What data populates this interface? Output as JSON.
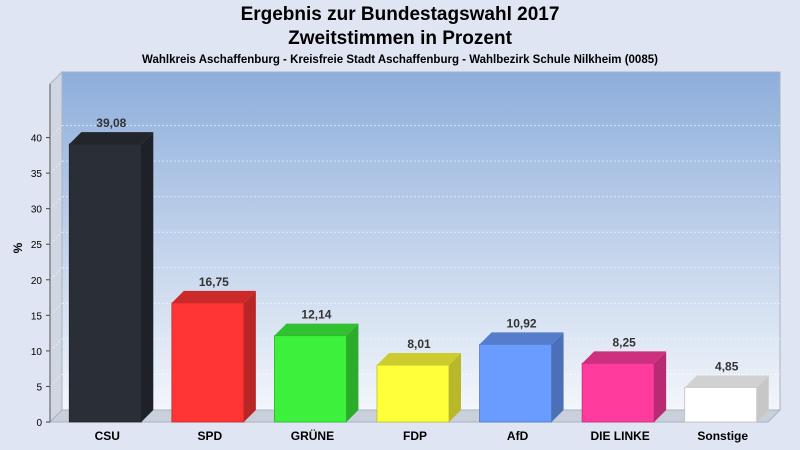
{
  "chart_data": {
    "type": "bar",
    "title": "Ergebnis zur Bundestagswahl 2017",
    "subtitle": "Zweitstimmen in Prozent",
    "caption": "Wahlkreis Aschaffenburg - Kreisfreie Stadt Aschaffenburg - Wahlbezirk Schule Nilkheim (0085)",
    "ylabel": "%",
    "ylim": [
      0,
      45
    ],
    "yticks": [
      0,
      5,
      10,
      15,
      20,
      25,
      30,
      35,
      40
    ],
    "grid": true,
    "categories": [
      "CSU",
      "SPD",
      "GRÜNE",
      "FDP",
      "AfD",
      "DIE LINKE",
      "Sonstige"
    ],
    "values": [
      39.08,
      16.75,
      12.14,
      8.01,
      10.92,
      8.25,
      4.85
    ],
    "value_labels": [
      "39,08",
      "16,75",
      "12,14",
      "8,01",
      "10,92",
      "8,25",
      "4,85"
    ],
    "colors": [
      "#2a2e36",
      "#ff3535",
      "#3cf03c",
      "#ffff3a",
      "#6a9cff",
      "#ff3c9e",
      "#ffffff"
    ]
  }
}
